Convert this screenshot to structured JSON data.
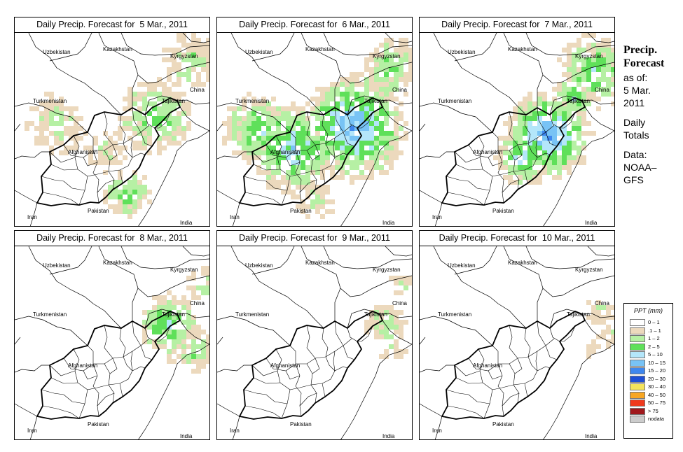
{
  "panels": [
    {
      "title": "Daily Precip. Forecast for  5 Mar., 2011",
      "level": 2
    },
    {
      "title": "Daily Precip. Forecast for  6 Mar., 2011",
      "level": 3
    },
    {
      "title": "Daily Precip. Forecast for  7 Mar., 2011",
      "level": 3
    },
    {
      "title": "Daily Precip. Forecast for  8 Mar., 2011",
      "level": 1
    },
    {
      "title": "Daily Precip. Forecast for  9 Mar., 2011",
      "level": 0
    },
    {
      "title": "Daily Precip. Forecast for  10 Mar., 2011",
      "level": 0
    }
  ],
  "country_labels": {
    "uzbekistan": "Uzbekistan",
    "kazakhstan": "Kazakhstan",
    "kyrgyzstan": "Kyrgyzstan",
    "china": "China",
    "turkmenistan": "Turkmenistan",
    "tajikistan": "Tajikistan",
    "afghanistan": "Afghanistan",
    "iran": "Iran",
    "pakistan": "Pakistan",
    "india": "India"
  },
  "side": {
    "title_1": "Precip.",
    "title_2": "Forecast",
    "asof": "as of:",
    "date_1": "5 Mar.",
    "date_2": "2011",
    "totals_1": "Daily",
    "totals_2": "Totals",
    "data_1": "Data:",
    "data_2": "NOAA–",
    "data_3": "GFS"
  },
  "legend": {
    "title": "PPT (mm)",
    "items": [
      {
        "label": "0 – 1",
        "color": "#ffffff"
      },
      {
        "label": ".1 – 1",
        "color": "#ecd9bd"
      },
      {
        "label": "1 – 2",
        "color": "#b6f0a4"
      },
      {
        "label": "2 – 5",
        "color": "#5fe05a"
      },
      {
        "label": "5 – 10",
        "color": "#b4e6fa"
      },
      {
        "label": "10 – 15",
        "color": "#78c3f5"
      },
      {
        "label": "15 – 20",
        "color": "#3f87ee"
      },
      {
        "label": "20 – 30",
        "color": "#1e4fd6"
      },
      {
        "label": "30 – 40",
        "color": "#f5e45c"
      },
      {
        "label": "40 – 50",
        "color": "#f7a623"
      },
      {
        "label": "50 – 75",
        "color": "#ef3a1e"
      },
      {
        "label": "> 75",
        "color": "#a0181c"
      },
      {
        "label": "nodata",
        "color": "#cccccc"
      }
    ]
  }
}
